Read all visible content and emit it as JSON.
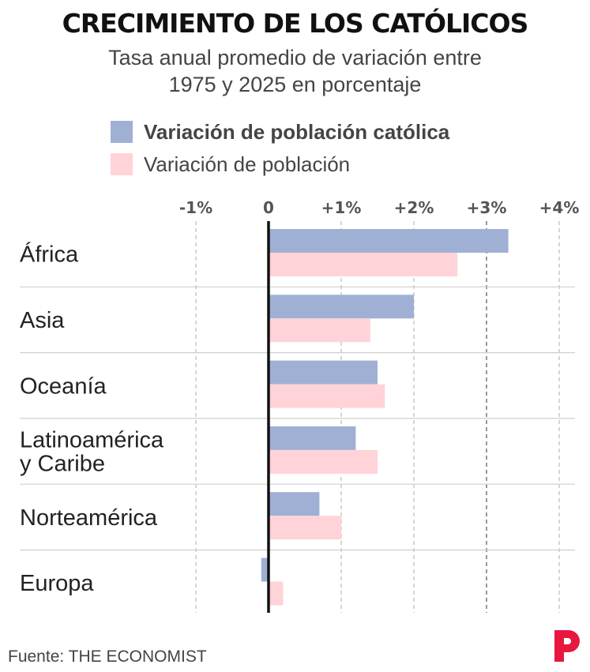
{
  "header": {
    "title": "CRECIMIENTO DE LOS CATÓLICOS",
    "subtitle_line1": "Tasa anual promedio de variación entre",
    "subtitle_line2": "1975 y 2025 en porcentaje"
  },
  "legend": {
    "items": [
      {
        "label": "Variación de población católica",
        "color": "#9fb0d4",
        "bold": true
      },
      {
        "label": "Variación de población",
        "color": "#ffd3d7",
        "bold": false
      }
    ]
  },
  "footer": {
    "source": "Fuente: THE ECONOMIST",
    "logo_color": "#e8173f"
  },
  "chart_data": {
    "type": "bar",
    "orientation": "horizontal",
    "title": "CRECIMIENTO DE LOS CATÓLICOS",
    "subtitle": "Tasa anual promedio de variación entre 1975 y 2025 en porcentaje",
    "categories": [
      [
        "África"
      ],
      [
        "Asia"
      ],
      [
        "Oceanía"
      ],
      [
        "Latinoamérica",
        "y Caribe"
      ],
      [
        "Norteamérica"
      ],
      [
        "Europa"
      ]
    ],
    "series": [
      {
        "name": "Variación de población católica",
        "color": "#9fb0d4",
        "values": [
          3.3,
          2.0,
          1.5,
          1.2,
          0.7,
          -0.1
        ]
      },
      {
        "name": "Variación de población",
        "color": "#ffd3d7",
        "values": [
          2.6,
          1.4,
          1.6,
          1.5,
          1.0,
          0.2
        ]
      }
    ],
    "xlim": [
      -1,
      4
    ],
    "ticks": [
      -1,
      0,
      1,
      2,
      3,
      4
    ],
    "tick_labels": [
      "-1%",
      "0",
      "+1%",
      "+2%",
      "+3%",
      "+4%"
    ],
    "grid": "vertical dashed",
    "legend_position": "top"
  }
}
